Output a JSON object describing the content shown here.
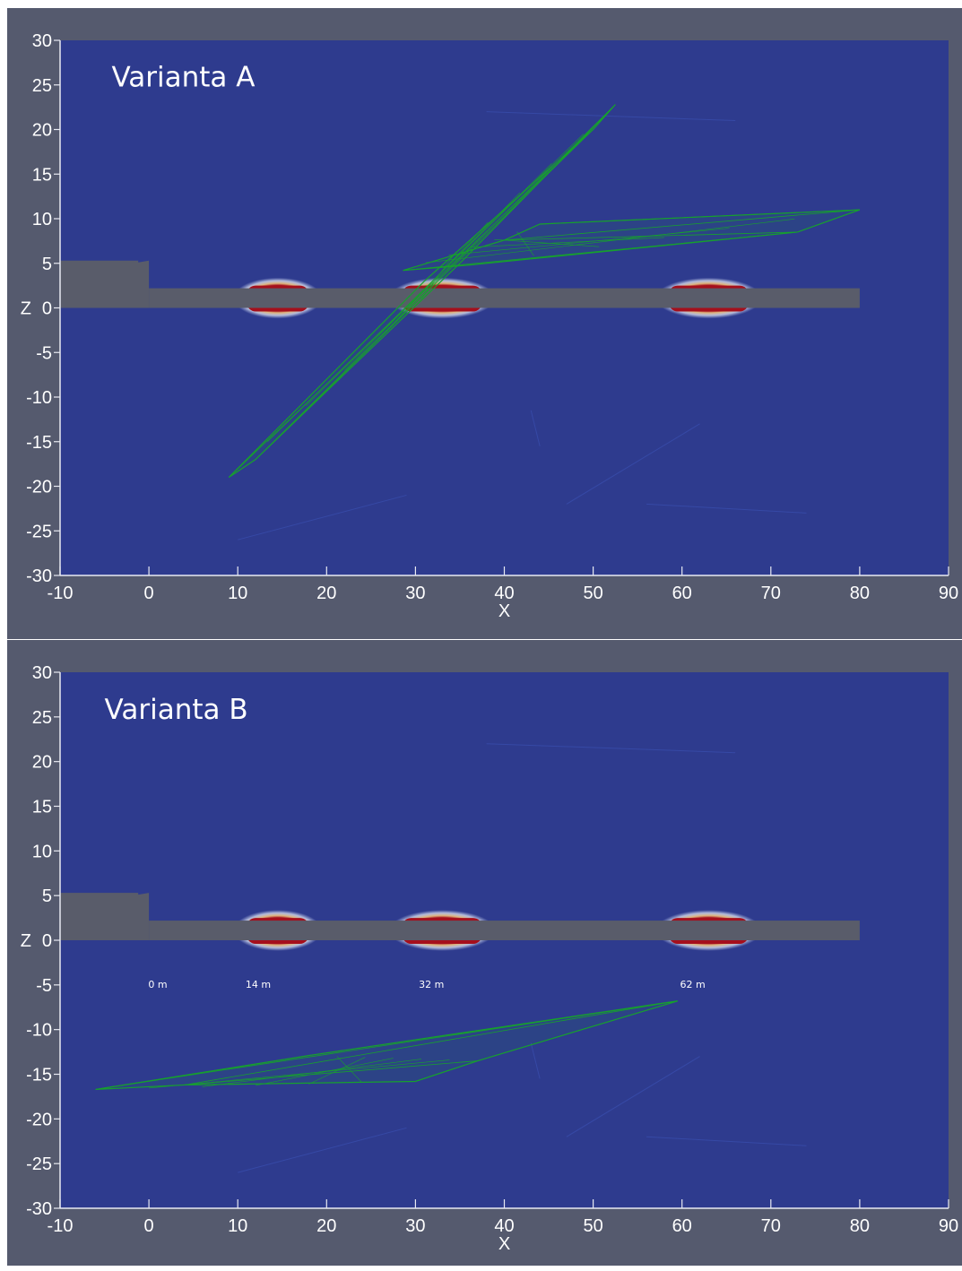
{
  "colors": {
    "viewport_background": "#555a6e",
    "plot_background": "#2e3b8e",
    "structure": "#595c6a",
    "hot_zone": "#a50f1c",
    "mesh_green": "#17a12d",
    "axis": "#e8eaf2"
  },
  "axes": {
    "x_title": "X",
    "y_title": "Z",
    "x_range": [
      -10,
      90
    ],
    "y_range": [
      -30,
      30
    ],
    "x_ticks": [
      -10,
      0,
      10,
      20,
      30,
      40,
      50,
      60,
      70,
      80,
      90
    ],
    "y_ticks": [
      30,
      25,
      20,
      15,
      10,
      5,
      0,
      -5,
      -10,
      -15,
      -20,
      -25,
      -30
    ]
  },
  "scene": {
    "structure": {
      "block": {
        "x": [
          -10,
          0
        ],
        "z": [
          0,
          5.3
        ]
      },
      "deck": {
        "x": [
          0,
          80
        ],
        "z": [
          0,
          2.2
        ]
      }
    },
    "hot_zones": [
      {
        "x_center": 14.5,
        "half_width": 3.5
      },
      {
        "x_center": 33,
        "half_width": 4.5
      },
      {
        "x_center": 63,
        "half_width": 4.5
      }
    ]
  },
  "panels": [
    {
      "title": "Varianta A",
      "position_labels": [],
      "mesh_planes": [
        {
          "name": "inclined-plane",
          "points": [
            [
              9,
              -19
            ],
            [
              12,
              -17
            ],
            [
              35,
              5
            ],
            [
              52.5,
              22.8
            ],
            [
              50,
              20
            ],
            [
              31,
              3
            ]
          ]
        },
        {
          "name": "horizontal-plane",
          "points": [
            [
              28.6,
              4.2
            ],
            [
              40,
              7.6
            ],
            [
              44,
              9.4
            ],
            [
              80,
              11
            ],
            [
              73,
              8.5
            ],
            [
              36,
              4.8
            ]
          ]
        }
      ]
    },
    {
      "title": "Varianta B",
      "position_labels": [
        {
          "text": "0 m",
          "x": 1
        },
        {
          "text": "14 m",
          "x": 12.3
        },
        {
          "text": "32 m",
          "x": 31.8
        },
        {
          "text": "62 m",
          "x": 61.2
        }
      ],
      "mesh_planes": [
        {
          "name": "dipping-plane",
          "points": [
            [
              -6,
              -16.7
            ],
            [
              4,
              -16.2
            ],
            [
              30,
              -15.8
            ],
            [
              37,
              -13.5
            ],
            [
              59.5,
              -6.8
            ],
            [
              18,
              -12.9
            ]
          ]
        }
      ]
    }
  ]
}
